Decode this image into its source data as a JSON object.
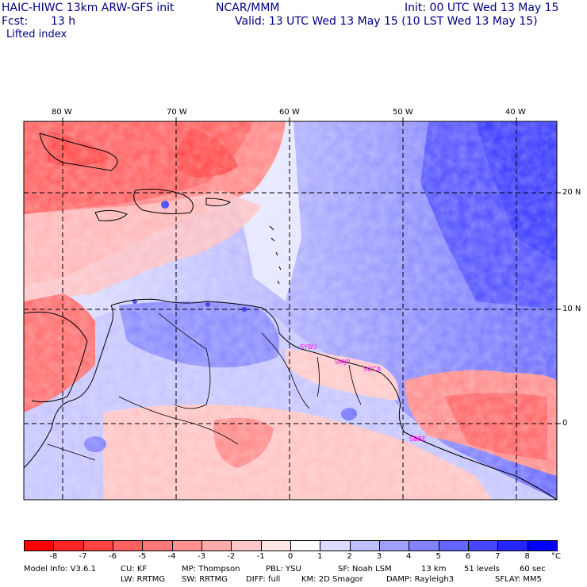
{
  "header": {
    "model_line": "HAIC-HIWC 13km ARW-GFS init",
    "agency": "NCAR/MMM",
    "init": "Init: 00 UTC Wed 13 May 15",
    "fcst_label": "Fcst:",
    "fcst_value": "13 h",
    "valid": "Valid: 13 UTC Wed 13 May 15 (10 LST Wed 13 May 15)",
    "field": "Lifted index"
  },
  "map": {
    "lon_labels": [
      "80 W",
      "70 W",
      "60 W",
      "50 W",
      "40 W"
    ],
    "lat_labels": [
      "20 N",
      "10 N",
      "0"
    ],
    "stations": [
      "SYBU",
      "SMJP",
      "SOCA",
      "SBBE"
    ],
    "colors": {
      "negative_max": "#ff0000",
      "neutral": "#ffffff",
      "positive_max": "#0000ff",
      "station_text": "#ff00ff",
      "grid": "#000000"
    }
  },
  "colorbar": {
    "ticks": [
      "-8",
      "-7",
      "-6",
      "-5",
      "-4",
      "-3",
      "-2",
      "-1",
      "0",
      "1",
      "2",
      "3",
      "4",
      "5",
      "6",
      "7",
      "8"
    ],
    "unit": "°C",
    "colors": [
      "#ff0000",
      "#ff2424",
      "#ff4444",
      "#ff6060",
      "#ff7878",
      "#ff9090",
      "#ffaaaa",
      "#ffc8c8",
      "#ffe6e6",
      "#ffffff",
      "#dcdcff",
      "#c0c0ff",
      "#a0a0ff",
      "#8282ff",
      "#6464ff",
      "#4646ff",
      "#2626ff",
      "#0000ff"
    ]
  },
  "footer": {
    "line1": {
      "info": "Model Info: V3.6.1",
      "cu": "CU: KF",
      "mp": "MP: Thompson",
      "pbl": "PBL: YSU",
      "sf": "SF: Noah LSM",
      "res": "13 km",
      "levels": "51 levels",
      "dt": "60 sec"
    },
    "line2": {
      "lw": "LW: RRTMG",
      "sw": "SW: RRTMG",
      "diff": "DIFF: full",
      "km": "KM: 2D Smagor",
      "damp": "DAMP: Rayleigh3",
      "sflay": "SFLAY: MM5"
    }
  }
}
